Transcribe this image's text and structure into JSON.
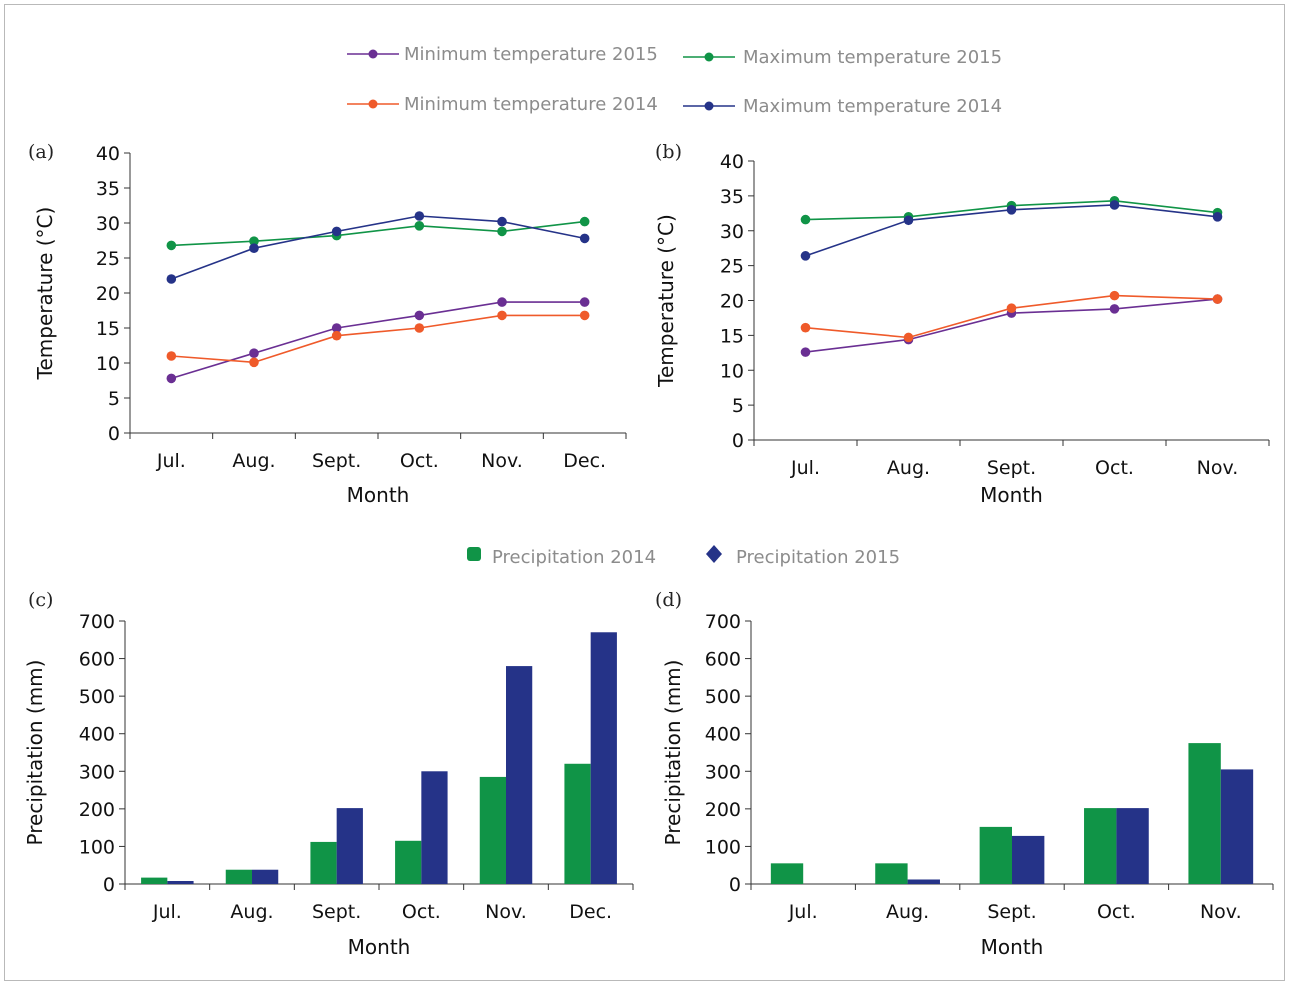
{
  "colors": {
    "min2015": "#6a2f93",
    "max2015": "#109447",
    "min2014": "#ef5a2a",
    "max2014": "#253388",
    "precip2014": "#109447",
    "precip2015": "#253388"
  },
  "temp_legend": [
    {
      "name": "Minimum temperature 2015",
      "color_key": "min2015"
    },
    {
      "name": "Maximum temperature 2015",
      "color_key": "max2015"
    },
    {
      "name": "Minimum temperature 2014",
      "color_key": "min2014"
    },
    {
      "name": "Maximum temperature 2014",
      "color_key": "max2014"
    }
  ],
  "precip_legend": [
    {
      "name": "Precipitation 2014",
      "color_key": "precip2014",
      "icon": "rounded-square-icon"
    },
    {
      "name": "Precipitation 2015",
      "color_key": "precip2015",
      "icon": "diamond-icon"
    }
  ],
  "chart_data": [
    {
      "panel": "(a)",
      "type": "line",
      "xlabel": "Month",
      "ylabel": "Temperature (°C)",
      "ylim": [
        0,
        40
      ],
      "yticks": [
        0,
        5,
        10,
        15,
        20,
        25,
        30,
        35,
        40
      ],
      "categories": [
        "Jul.",
        "Aug.",
        "Sept.",
        "Oct.",
        "Nov.",
        "Dec."
      ],
      "series": [
        {
          "name": "Minimum temperature 2015",
          "color_key": "min2015",
          "values": [
            7.8,
            11.4,
            15.0,
            16.8,
            18.7,
            18.7
          ]
        },
        {
          "name": "Maximum temperature 2015",
          "color_key": "max2015",
          "values": [
            26.8,
            27.4,
            28.2,
            29.6,
            28.8,
            30.2
          ]
        },
        {
          "name": "Minimum temperature 2014",
          "color_key": "min2014",
          "values": [
            11.0,
            10.1,
            13.9,
            15.0,
            16.8,
            16.8
          ]
        },
        {
          "name": "Maximum temperature 2014",
          "color_key": "max2014",
          "values": [
            22.0,
            26.4,
            28.8,
            31.0,
            30.2,
            27.8
          ]
        }
      ]
    },
    {
      "panel": "(b)",
      "type": "line",
      "xlabel": "Month",
      "ylabel": "Temperature (°C)",
      "ylim": [
        0,
        40
      ],
      "yticks": [
        0,
        5,
        10,
        15,
        20,
        25,
        30,
        35,
        40
      ],
      "categories": [
        "Jul.",
        "Aug.",
        "Sept.",
        "Oct.",
        "Nov."
      ],
      "series": [
        {
          "name": "Minimum temperature 2015",
          "color_key": "min2015",
          "values": [
            12.6,
            14.4,
            18.2,
            18.8,
            20.2
          ]
        },
        {
          "name": "Maximum temperature 2015",
          "color_key": "max2015",
          "values": [
            31.6,
            32.0,
            33.6,
            34.3,
            32.6
          ]
        },
        {
          "name": "Minimum temperature 2014",
          "color_key": "min2014",
          "values": [
            16.1,
            14.7,
            18.9,
            20.7,
            20.2
          ]
        },
        {
          "name": "Maximum temperature 2014",
          "color_key": "max2014",
          "values": [
            26.4,
            31.5,
            33.0,
            33.7,
            32.0
          ]
        }
      ]
    },
    {
      "panel": "(c)",
      "type": "bar",
      "xlabel": "Month",
      "ylabel": "Precipitation (mm)",
      "ylim": [
        0,
        700
      ],
      "yticks": [
        0,
        100,
        200,
        300,
        400,
        500,
        600,
        700
      ],
      "categories": [
        "Jul.",
        "Aug.",
        "Sept.",
        "Oct.",
        "Nov.",
        "Dec."
      ],
      "series": [
        {
          "name": "Precipitation 2014",
          "color_key": "precip2014",
          "values": [
            17,
            38,
            112,
            115,
            285,
            320
          ]
        },
        {
          "name": "Precipitation 2015",
          "color_key": "precip2015",
          "values": [
            8,
            38,
            202,
            300,
            580,
            670
          ]
        }
      ]
    },
    {
      "panel": "(d)",
      "type": "bar",
      "xlabel": "Month",
      "ylabel": "Precipitation (mm)",
      "ylim": [
        0,
        700
      ],
      "yticks": [
        0,
        100,
        200,
        300,
        400,
        500,
        600,
        700
      ],
      "categories": [
        "Jul.",
        "Aug.",
        "Sept.",
        "Oct.",
        "Nov."
      ],
      "series": [
        {
          "name": "Precipitation 2014",
          "color_key": "precip2014",
          "values": [
            55,
            55,
            152,
            202,
            375
          ]
        },
        {
          "name": "Precipitation 2015",
          "color_key": "precip2015",
          "values": [
            0,
            12,
            128,
            202,
            305
          ]
        }
      ]
    }
  ]
}
